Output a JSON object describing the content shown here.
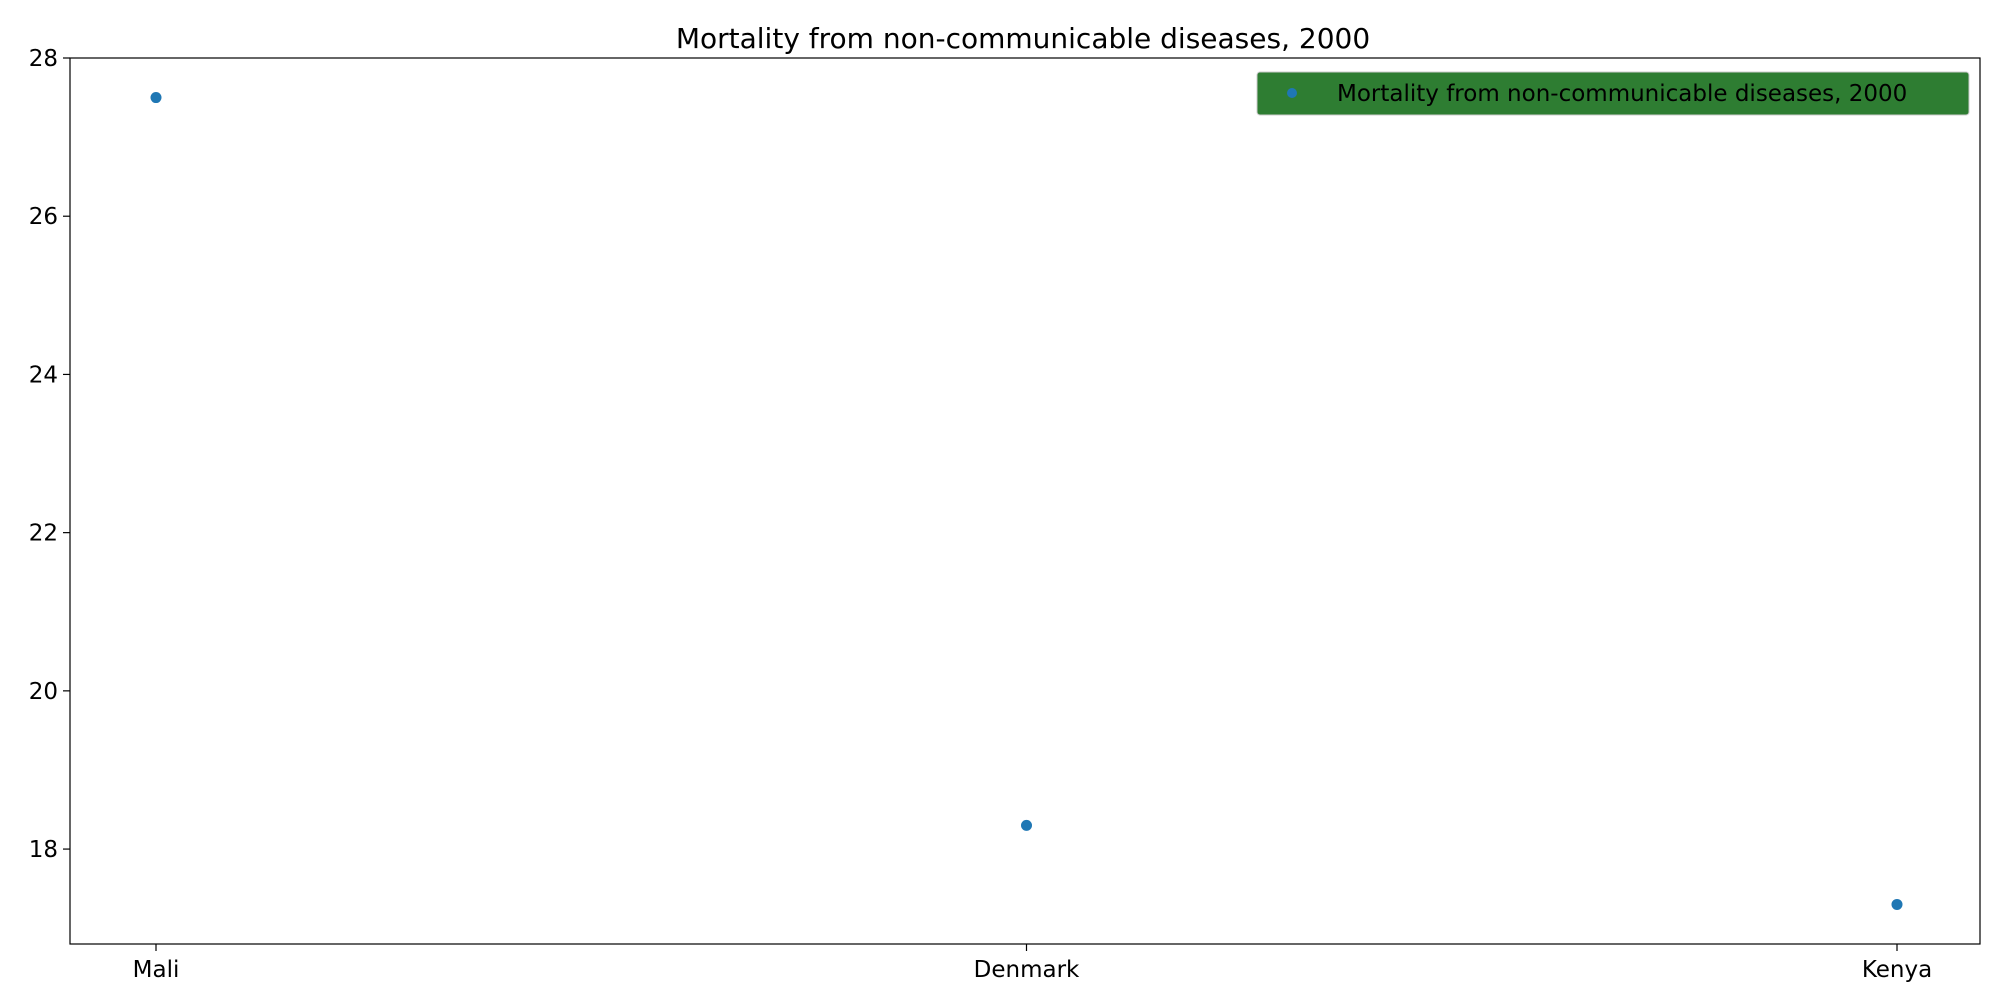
{
  "chart_data": {
    "type": "scatter",
    "title": "Mortality from non-communicable diseases, 2000",
    "xlabel": "",
    "ylabel": "",
    "categories": [
      "Mali",
      "Denmark",
      "Kenya"
    ],
    "series": [
      {
        "name": "Mortality from non-communicable diseases, 2000",
        "values": [
          27.5,
          18.3,
          17.3
        ],
        "color": "#1f77b4"
      }
    ],
    "ylim": [
      16.8,
      28.0
    ],
    "yticks": [
      18,
      20,
      22,
      24,
      26,
      28
    ],
    "grid": false,
    "legend": {
      "placement": "top-right",
      "background": "#2e7d32"
    }
  }
}
